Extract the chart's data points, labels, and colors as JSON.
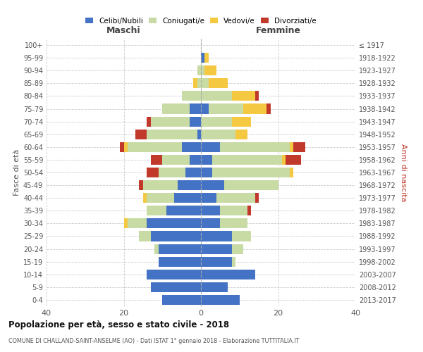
{
  "age_groups": [
    "0-4",
    "5-9",
    "10-14",
    "15-19",
    "20-24",
    "25-29",
    "30-34",
    "35-39",
    "40-44",
    "45-49",
    "50-54",
    "55-59",
    "60-64",
    "65-69",
    "70-74",
    "75-79",
    "80-84",
    "85-89",
    "90-94",
    "95-99",
    "100+"
  ],
  "birth_years": [
    "2013-2017",
    "2008-2012",
    "2003-2007",
    "1998-2002",
    "1993-1997",
    "1988-1992",
    "1983-1987",
    "1978-1982",
    "1973-1977",
    "1968-1972",
    "1963-1967",
    "1958-1962",
    "1953-1957",
    "1948-1952",
    "1943-1947",
    "1938-1942",
    "1933-1937",
    "1928-1932",
    "1923-1927",
    "1918-1922",
    "≤ 1917"
  ],
  "maschi": {
    "celibi": [
      10,
      13,
      14,
      11,
      11,
      13,
      14,
      9,
      7,
      6,
      4,
      3,
      5,
      1,
      3,
      3,
      0,
      0,
      0,
      0,
      0
    ],
    "coniugati": [
      0,
      0,
      0,
      0,
      1,
      3,
      5,
      5,
      7,
      9,
      7,
      7,
      14,
      13,
      10,
      7,
      5,
      1,
      1,
      0,
      0
    ],
    "vedovi": [
      0,
      0,
      0,
      0,
      0,
      0,
      1,
      0,
      1,
      0,
      0,
      0,
      1,
      0,
      0,
      0,
      0,
      1,
      0,
      0,
      0
    ],
    "divorziati": [
      0,
      0,
      0,
      0,
      0,
      0,
      0,
      0,
      0,
      1,
      3,
      3,
      1,
      3,
      1,
      0,
      0,
      0,
      0,
      0,
      0
    ]
  },
  "femmine": {
    "nubili": [
      10,
      7,
      14,
      8,
      8,
      8,
      5,
      5,
      4,
      6,
      3,
      3,
      5,
      0,
      0,
      2,
      0,
      0,
      0,
      1,
      0
    ],
    "coniugate": [
      0,
      0,
      0,
      1,
      3,
      5,
      7,
      7,
      10,
      14,
      20,
      18,
      18,
      9,
      8,
      9,
      8,
      2,
      1,
      0,
      0
    ],
    "vedove": [
      0,
      0,
      0,
      0,
      0,
      0,
      0,
      0,
      0,
      0,
      1,
      1,
      1,
      3,
      5,
      6,
      6,
      5,
      3,
      1,
      0
    ],
    "divorziate": [
      0,
      0,
      0,
      0,
      0,
      0,
      0,
      1,
      1,
      0,
      0,
      4,
      3,
      0,
      0,
      1,
      1,
      0,
      0,
      0,
      0
    ]
  },
  "colors": {
    "celibi_nubili": "#4472C4",
    "coniugati": "#c8dba4",
    "vedovi": "#f5c842",
    "divorziati": "#c0392b"
  },
  "xlim": 40,
  "title": "Popolazione per età, sesso e stato civile - 2018",
  "subtitle": "COMUNE DI CHALLAND-SAINT-ANSELME (AO) - Dati ISTAT 1° gennaio 2018 - Elaborazione TUTTITALIA.IT",
  "ylabel_left": "Fasce di età",
  "ylabel_right": "Anni di nascita",
  "xlabel_left": "Maschi",
  "xlabel_right": "Femmine",
  "legend_labels": [
    "Celibi/Nubili",
    "Coniugati/e",
    "Vedovi/e",
    "Divorziati/e"
  ]
}
